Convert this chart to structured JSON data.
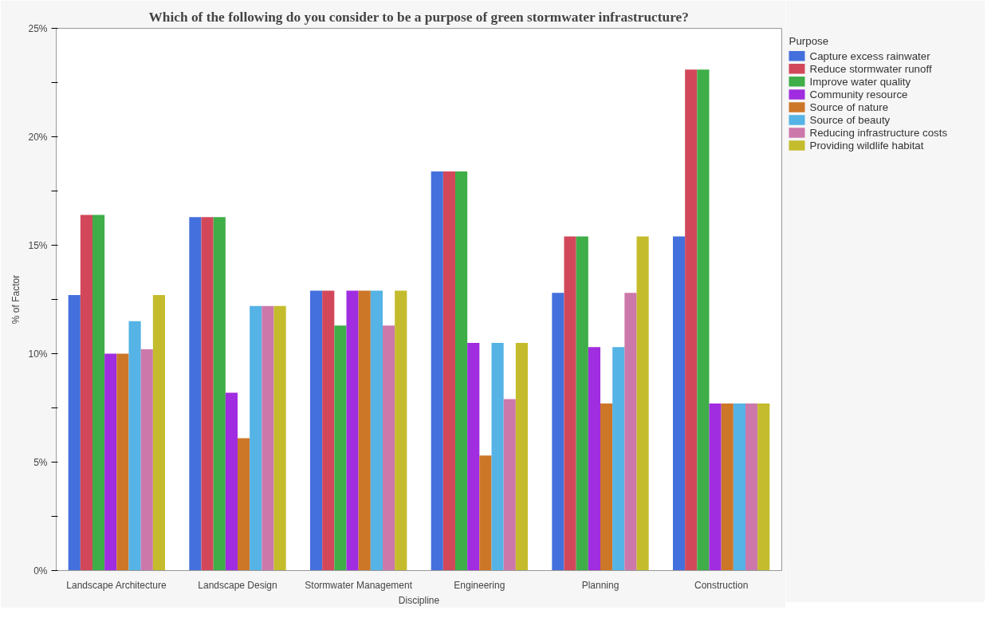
{
  "chart_data": {
    "type": "bar",
    "title": "Which of the following do you consider to be a purpose of green stormwater infrastructure?",
    "xlabel": "Discipline",
    "ylabel": "% of Factor",
    "legend_title": "Purpose",
    "legend": "right",
    "categories": [
      "Landscape Architecture",
      "Landscape Design",
      "Stormwater Management",
      "Engineering",
      "Planning",
      "Construction"
    ],
    "series": [
      {
        "name": "Capture excess rainwater",
        "color": "#4370dc",
        "values": [
          12.7,
          16.3,
          12.9,
          18.4,
          12.8,
          15.4
        ]
      },
      {
        "name": "Reduce stormwater runoff",
        "color": "#d2485a",
        "values": [
          16.4,
          16.3,
          12.9,
          18.4,
          15.4,
          23.1
        ]
      },
      {
        "name": "Improve water quality",
        "color": "#3fae49",
        "values": [
          16.4,
          16.3,
          11.3,
          18.4,
          15.4,
          23.1
        ]
      },
      {
        "name": "Community resource",
        "color": "#a02de0",
        "values": [
          10.0,
          8.2,
          12.9,
          10.5,
          10.3,
          7.7
        ]
      },
      {
        "name": "Source of nature",
        "color": "#cc7728",
        "values": [
          10.0,
          6.1,
          12.9,
          5.3,
          7.7,
          7.7
        ]
      },
      {
        "name": "Source of beauty",
        "color": "#55b3e5",
        "values": [
          11.5,
          12.2,
          12.9,
          10.5,
          10.3,
          7.7
        ]
      },
      {
        "name": "Reducing infrastructure costs",
        "color": "#cc78ab",
        "values": [
          10.2,
          12.2,
          11.3,
          7.9,
          12.8,
          7.7
        ]
      },
      {
        "name": "Providing wildlife habitat",
        "color": "#c4bc2c",
        "values": [
          12.7,
          12.2,
          12.9,
          10.5,
          15.4,
          7.7
        ]
      }
    ],
    "ylim": [
      0,
      25
    ],
    "yticks": [
      {
        "value": 0,
        "label": "0%"
      },
      {
        "value": 2.5,
        "label": null
      },
      {
        "value": 5,
        "label": "5%"
      },
      {
        "value": 7.5,
        "label": null
      },
      {
        "value": 10,
        "label": "10%"
      },
      {
        "value": 12.5,
        "label": null
      },
      {
        "value": 15,
        "label": "15%"
      },
      {
        "value": 17.5,
        "label": null
      },
      {
        "value": 20,
        "label": "20%"
      },
      {
        "value": 22.5,
        "label": null
      },
      {
        "value": 25,
        "label": "25%"
      }
    ],
    "grid": false
  }
}
